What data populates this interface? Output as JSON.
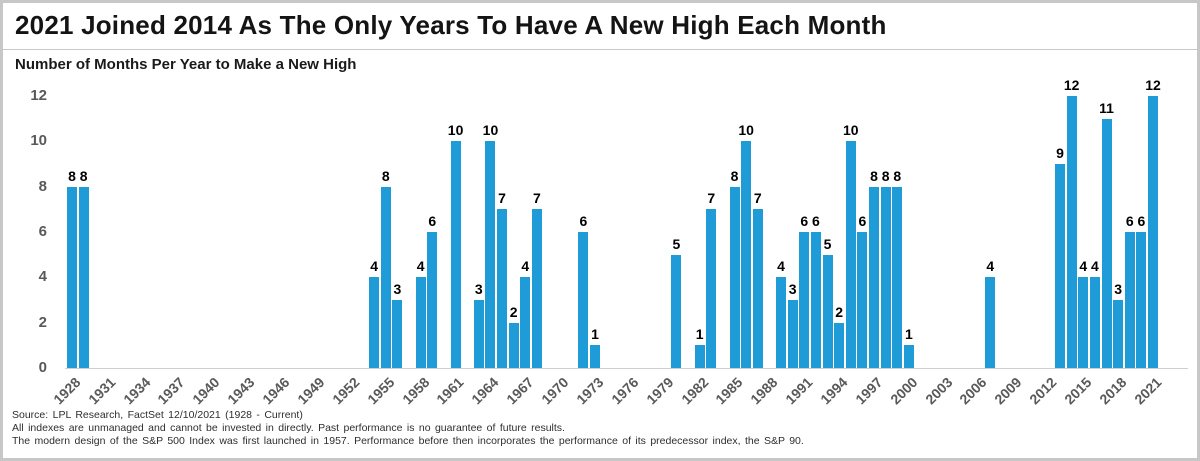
{
  "chart_data": {
    "type": "bar",
    "title": "2021 Joined 2014 As The Only Years To Have A New High Each Month",
    "subtitle": "Number of Months Per Year to Make a New High",
    "xlabel": "",
    "ylabel": "",
    "ylim": [
      0,
      12
    ],
    "y_ticks": [
      0,
      2,
      4,
      6,
      8,
      10,
      12
    ],
    "x_range": [
      1928,
      2021
    ],
    "x_tick_years": [
      1928,
      1931,
      1934,
      1937,
      1940,
      1943,
      1946,
      1949,
      1952,
      1955,
      1958,
      1961,
      1964,
      1967,
      1970,
      1973,
      1976,
      1979,
      1982,
      1985,
      1988,
      1991,
      1994,
      1997,
      2000,
      2003,
      2006,
      2009,
      2012,
      2015,
      2018,
      2021
    ],
    "grid": false,
    "legend": null,
    "bar_color": "#1F9BD7",
    "data_labels_shown": true,
    "points": [
      {
        "year": 1928,
        "value": 8
      },
      {
        "year": 1929,
        "value": 8
      },
      {
        "year": 1954,
        "value": 4
      },
      {
        "year": 1955,
        "value": 8
      },
      {
        "year": 1956,
        "value": 3
      },
      {
        "year": 1958,
        "value": 4
      },
      {
        "year": 1959,
        "value": 6
      },
      {
        "year": 1961,
        "value": 10
      },
      {
        "year": 1963,
        "value": 3
      },
      {
        "year": 1964,
        "value": 10
      },
      {
        "year": 1965,
        "value": 7
      },
      {
        "year": 1966,
        "value": 2
      },
      {
        "year": 1967,
        "value": 4
      },
      {
        "year": 1968,
        "value": 7
      },
      {
        "year": 1972,
        "value": 6
      },
      {
        "year": 1973,
        "value": 1
      },
      {
        "year": 1980,
        "value": 5
      },
      {
        "year": 1982,
        "value": 1
      },
      {
        "year": 1983,
        "value": 7
      },
      {
        "year": 1985,
        "value": 8
      },
      {
        "year": 1986,
        "value": 10
      },
      {
        "year": 1987,
        "value": 7
      },
      {
        "year": 1989,
        "value": 4
      },
      {
        "year": 1990,
        "value": 3
      },
      {
        "year": 1991,
        "value": 6
      },
      {
        "year": 1992,
        "value": 6
      },
      {
        "year": 1993,
        "value": 5
      },
      {
        "year": 1994,
        "value": 2
      },
      {
        "year": 1995,
        "value": 10
      },
      {
        "year": 1996,
        "value": 6
      },
      {
        "year": 1997,
        "value": 8
      },
      {
        "year": 1998,
        "value": 8
      },
      {
        "year": 1999,
        "value": 8
      },
      {
        "year": 2000,
        "value": 1
      },
      {
        "year": 2007,
        "value": 4
      },
      {
        "year": 2013,
        "value": 9
      },
      {
        "year": 2014,
        "value": 12
      },
      {
        "year": 2015,
        "value": 4
      },
      {
        "year": 2016,
        "value": 4
      },
      {
        "year": 2017,
        "value": 11
      },
      {
        "year": 2018,
        "value": 3
      },
      {
        "year": 2019,
        "value": 6
      },
      {
        "year": 2020,
        "value": 6
      },
      {
        "year": 2021,
        "value": 12
      }
    ]
  },
  "footer": {
    "lines": [
      "Source: LPL Research, FactSet 12/10/2021 (1928 - Current)",
      "All indexes are unmanaged and cannot be invested in directly. Past performance is no guarantee of future results.",
      "The modern design of the S&P 500 Index was first launched in 1957. Performance before then incorporates the performance of its predecessor index, the S&P 90."
    ]
  }
}
